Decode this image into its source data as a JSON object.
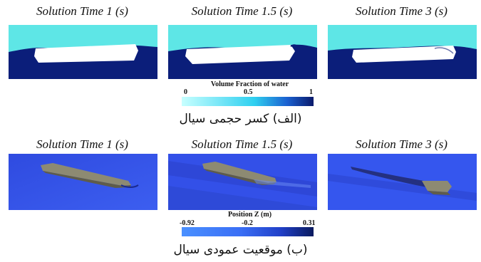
{
  "row1": {
    "titles": [
      "Solution Time 1 (s)",
      "Solution Time 1.5 (s)",
      "Solution Time 3 (s)"
    ],
    "legend": {
      "title": "Volume Fraction of water",
      "ticks": [
        "0",
        "0.5",
        "1"
      ],
      "color_low": "#c7ffff",
      "color_high": "#0a1a6b"
    },
    "caption": "(الف) کسر حجمی سیال"
  },
  "row2": {
    "titles": [
      "Solution Time 1 (s)",
      "Solution Time 1.5 (s)",
      "Solution Time 3 (s)"
    ],
    "legend": {
      "title": "Position Z (m)",
      "ticks": [
        "-0.92",
        "-0.2",
        "0.31"
      ],
      "color_low": "#3a78ff",
      "color_high": "#0a1a5e"
    },
    "caption": "(ب) موقعیت عمودی سیال"
  },
  "colors": {
    "air": "#5ee6e6",
    "water": "#0b1e7a",
    "hull_white": "#ffffff",
    "sea_blue": "#3350e8",
    "hull_grey": "#8d8a72"
  }
}
